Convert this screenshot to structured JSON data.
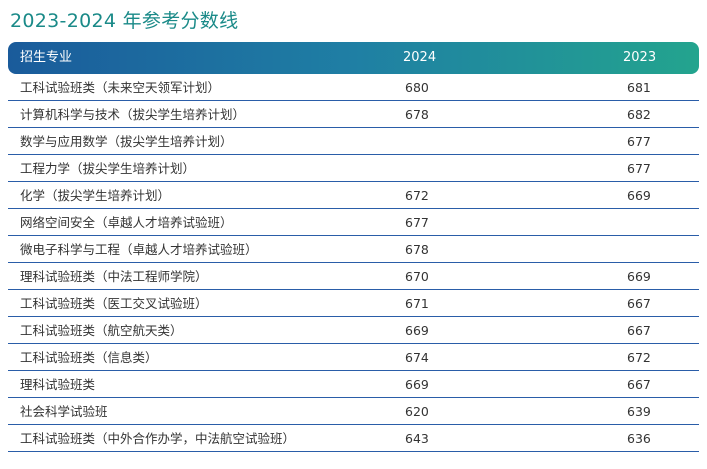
{
  "title": "2023-2024 年参考分数线",
  "table": {
    "headers": [
      "招生专业",
      "2024",
      "2023"
    ],
    "rows": [
      [
        "工科试验班类（未来空天领军计划）",
        "680",
        "681"
      ],
      [
        "计算机科学与技术（拔尖学生培养计划）",
        "678",
        "682"
      ],
      [
        "数学与应用数学（拔尖学生培养计划）",
        "",
        "677"
      ],
      [
        "工程力学（拔尖学生培养计划）",
        "",
        "677"
      ],
      [
        "化学（拔尖学生培养计划）",
        "672",
        "669"
      ],
      [
        "网络空间安全（卓越人才培养试验班）",
        "677",
        ""
      ],
      [
        "微电子科学与工程（卓越人才培养试验班）",
        "678",
        ""
      ],
      [
        "理科试验班类（中法工程师学院）",
        "670",
        "669"
      ],
      [
        "工科试验班类（医工交叉试验班）",
        "671",
        "667"
      ],
      [
        "工科试验班类（航空航天类）",
        "669",
        "667"
      ],
      [
        "工科试验班类（信息类）",
        "674",
        "672"
      ],
      [
        "理科试验班类",
        "669",
        "667"
      ],
      [
        "社会科学试验班",
        "620",
        "639"
      ],
      [
        "工科试验班类（中外合作办学，中法航空试验班）",
        "643",
        "636"
      ]
    ]
  },
  "colors": {
    "title": "#1a8a88",
    "header_gradient_start": "#1a5b9b",
    "header_gradient_end": "#23a48e",
    "row_divider": "#2a5da8"
  }
}
